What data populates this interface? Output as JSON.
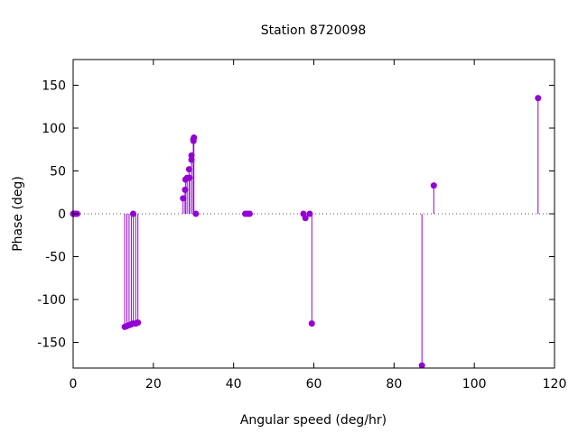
{
  "chart_data": {
    "type": "scatter",
    "style": "impulse",
    "title": "Station 8720098",
    "xlabel": "Angular speed (deg/hr)",
    "ylabel": "Phase (deg)",
    "xlim": [
      0,
      120
    ],
    "ylim": [
      -180,
      180
    ],
    "xticks": [
      0,
      20,
      40,
      60,
      80,
      100,
      120
    ],
    "yticks": [
      -150,
      -100,
      -50,
      0,
      50,
      100,
      150
    ],
    "zero_line": "dotted",
    "color": "#9400d3",
    "points": [
      {
        "x": 0.0,
        "y": 0
      },
      {
        "x": 0.04,
        "y": 0
      },
      {
        "x": 0.08,
        "y": 0
      },
      {
        "x": 0.5,
        "y": 0
      },
      {
        "x": 1.0,
        "y": 0
      },
      {
        "x": 12.85,
        "y": -132
      },
      {
        "x": 13.4,
        "y": -131
      },
      {
        "x": 13.94,
        "y": -130
      },
      {
        "x": 14.5,
        "y": -129
      },
      {
        "x": 14.96,
        "y": 0
      },
      {
        "x": 15.0,
        "y": -128
      },
      {
        "x": 15.59,
        "y": -128
      },
      {
        "x": 16.14,
        "y": -127
      },
      {
        "x": 27.4,
        "y": 18
      },
      {
        "x": 27.9,
        "y": 28
      },
      {
        "x": 28.0,
        "y": 40
      },
      {
        "x": 28.4,
        "y": 42
      },
      {
        "x": 28.9,
        "y": 52
      },
      {
        "x": 29.0,
        "y": 42
      },
      {
        "x": 29.5,
        "y": 63
      },
      {
        "x": 29.5,
        "y": 68
      },
      {
        "x": 29.96,
        "y": 87
      },
      {
        "x": 30.0,
        "y": 85
      },
      {
        "x": 30.1,
        "y": 89
      },
      {
        "x": 30.6,
        "y": 0
      },
      {
        "x": 42.9,
        "y": 0
      },
      {
        "x": 43.5,
        "y": 0
      },
      {
        "x": 44.0,
        "y": 0
      },
      {
        "x": 57.4,
        "y": 0
      },
      {
        "x": 57.9,
        "y": -5
      },
      {
        "x": 58.98,
        "y": 0
      },
      {
        "x": 59.5,
        "y": -128
      },
      {
        "x": 86.95,
        "y": -177
      },
      {
        "x": 89.9,
        "y": 33
      },
      {
        "x": 115.9,
        "y": 135
      }
    ]
  }
}
